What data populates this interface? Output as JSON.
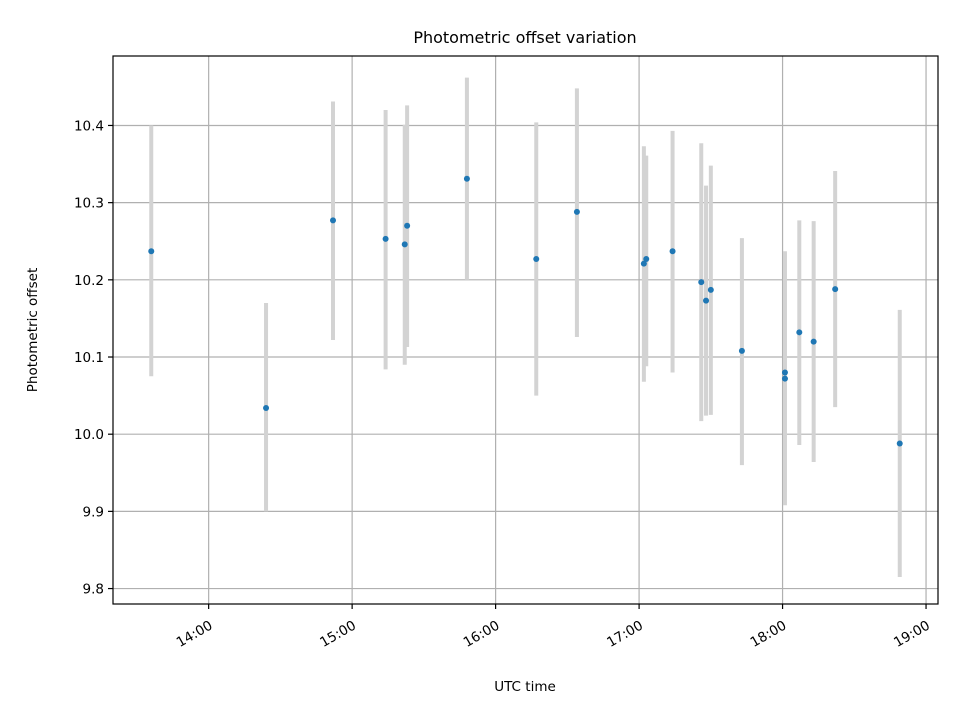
{
  "chart_data": {
    "type": "scatter",
    "title": "Photometric offset variation",
    "xlabel": "UTC time",
    "ylabel": "Photometric offset",
    "x_is_time": true,
    "xlim": [
      "13:20",
      "19:05"
    ],
    "ylim": [
      9.78,
      10.49
    ],
    "xticks": [
      "14:00",
      "15:00",
      "16:00",
      "17:00",
      "18:00",
      "19:00"
    ],
    "yticks": [
      9.8,
      9.9,
      10.0,
      10.1,
      10.2,
      10.3,
      10.4
    ],
    "grid": true,
    "point_color": "#1f77b4",
    "errorbar_color": "#d3d3d3",
    "points": [
      {
        "x": "13:36",
        "y": 10.237,
        "low": 10.075,
        "high": 10.4
      },
      {
        "x": "14:24",
        "y": 10.034,
        "low": 9.9,
        "high": 10.17
      },
      {
        "x": "14:52",
        "y": 10.277,
        "low": 10.122,
        "high": 10.431
      },
      {
        "x": "15:14",
        "y": 10.253,
        "low": 10.084,
        "high": 10.42
      },
      {
        "x": "15:22",
        "y": 10.246,
        "low": 10.09,
        "high": 10.401
      },
      {
        "x": "15:23",
        "y": 10.27,
        "low": 10.113,
        "high": 10.426
      },
      {
        "x": "15:48",
        "y": 10.331,
        "low": 10.2,
        "high": 10.462
      },
      {
        "x": "16:17",
        "y": 10.227,
        "low": 10.05,
        "high": 10.404
      },
      {
        "x": "16:34",
        "y": 10.288,
        "low": 10.126,
        "high": 10.448
      },
      {
        "x": "17:02",
        "y": 10.221,
        "low": 10.068,
        "high": 10.373
      },
      {
        "x": "17:03",
        "y": 10.227,
        "low": 10.088,
        "high": 10.361
      },
      {
        "x": "17:14",
        "y": 10.237,
        "low": 10.08,
        "high": 10.393
      },
      {
        "x": "17:26",
        "y": 10.197,
        "low": 10.017,
        "high": 10.377
      },
      {
        "x": "17:28",
        "y": 10.173,
        "low": 10.024,
        "high": 10.322
      },
      {
        "x": "17:30",
        "y": 10.187,
        "low": 10.025,
        "high": 10.348
      },
      {
        "x": "17:43",
        "y": 10.108,
        "low": 9.96,
        "high": 10.254
      },
      {
        "x": "18:01",
        "y": 10.072,
        "low": 9.908,
        "high": 10.237
      },
      {
        "x": "18:01",
        "y": 10.08,
        "low": 9.925,
        "high": 10.235
      },
      {
        "x": "18:07",
        "y": 10.132,
        "low": 9.986,
        "high": 10.277
      },
      {
        "x": "18:13",
        "y": 10.12,
        "low": 9.964,
        "high": 10.276
      },
      {
        "x": "18:22",
        "y": 10.188,
        "low": 10.035,
        "high": 10.341
      },
      {
        "x": "18:49",
        "y": 9.988,
        "low": 9.815,
        "high": 10.161
      }
    ]
  }
}
